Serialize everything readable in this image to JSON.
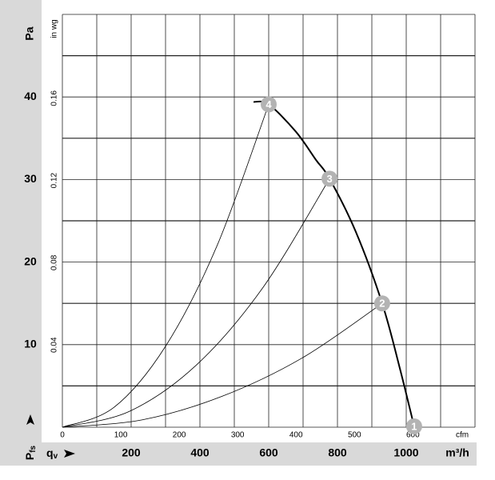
{
  "chart_data": {
    "type": "line",
    "x_label": "q",
    "x_label_sub": "v",
    "x_unit": "m³/h",
    "xlim": [
      0,
      1200
    ],
    "xticks": [
      200,
      400,
      600,
      800,
      1000
    ],
    "y_label": "P",
    "y_label_sub": "fs",
    "y_unit": "Pa",
    "ylim": [
      0,
      50
    ],
    "yticks": [
      10,
      20,
      30,
      40
    ],
    "x2_unit": "cfm",
    "x2lim": [
      0,
      706.3
    ],
    "x2ticks": [
      0,
      100,
      200,
      300,
      400,
      500,
      600
    ],
    "y2_unit": "in wg",
    "y2lim": [
      0,
      0.2008
    ],
    "y2ticks": [
      0.04,
      0.08,
      0.12,
      0.16
    ],
    "fan_curve": {
      "color": "#000000",
      "x": [
        556,
        600,
        679,
        737,
        777,
        853,
        930,
        981,
        1023
      ],
      "values": [
        39.4,
        39.1,
        35.8,
        32.4,
        30.1,
        23.7,
        15.0,
        7.2,
        0.1
      ]
    },
    "system_curves": [
      {
        "color": "#000000",
        "x": [
          0,
          150,
          300,
          450,
          600
        ],
        "values": [
          0,
          2.4,
          9.8,
          22.0,
          39.1
        ]
      },
      {
        "color": "#000000",
        "x": [
          0,
          194,
          389,
          583,
          777
        ],
        "values": [
          0,
          1.9,
          7.5,
          16.9,
          30.1
        ]
      },
      {
        "color": "#000000",
        "x": [
          0,
          233,
          465,
          698,
          930
        ],
        "values": [
          0,
          0.9,
          3.75,
          8.4,
          15.0
        ]
      }
    ],
    "operating_points": [
      {
        "label": "1",
        "x": 1023,
        "y": 0.1
      },
      {
        "label": "2",
        "x": 930,
        "y": 15.0
      },
      {
        "label": "3",
        "x": 777,
        "y": 30.1
      },
      {
        "label": "4",
        "x": 600,
        "y": 39.1
      }
    ],
    "point_color": "#b3b3b3"
  }
}
